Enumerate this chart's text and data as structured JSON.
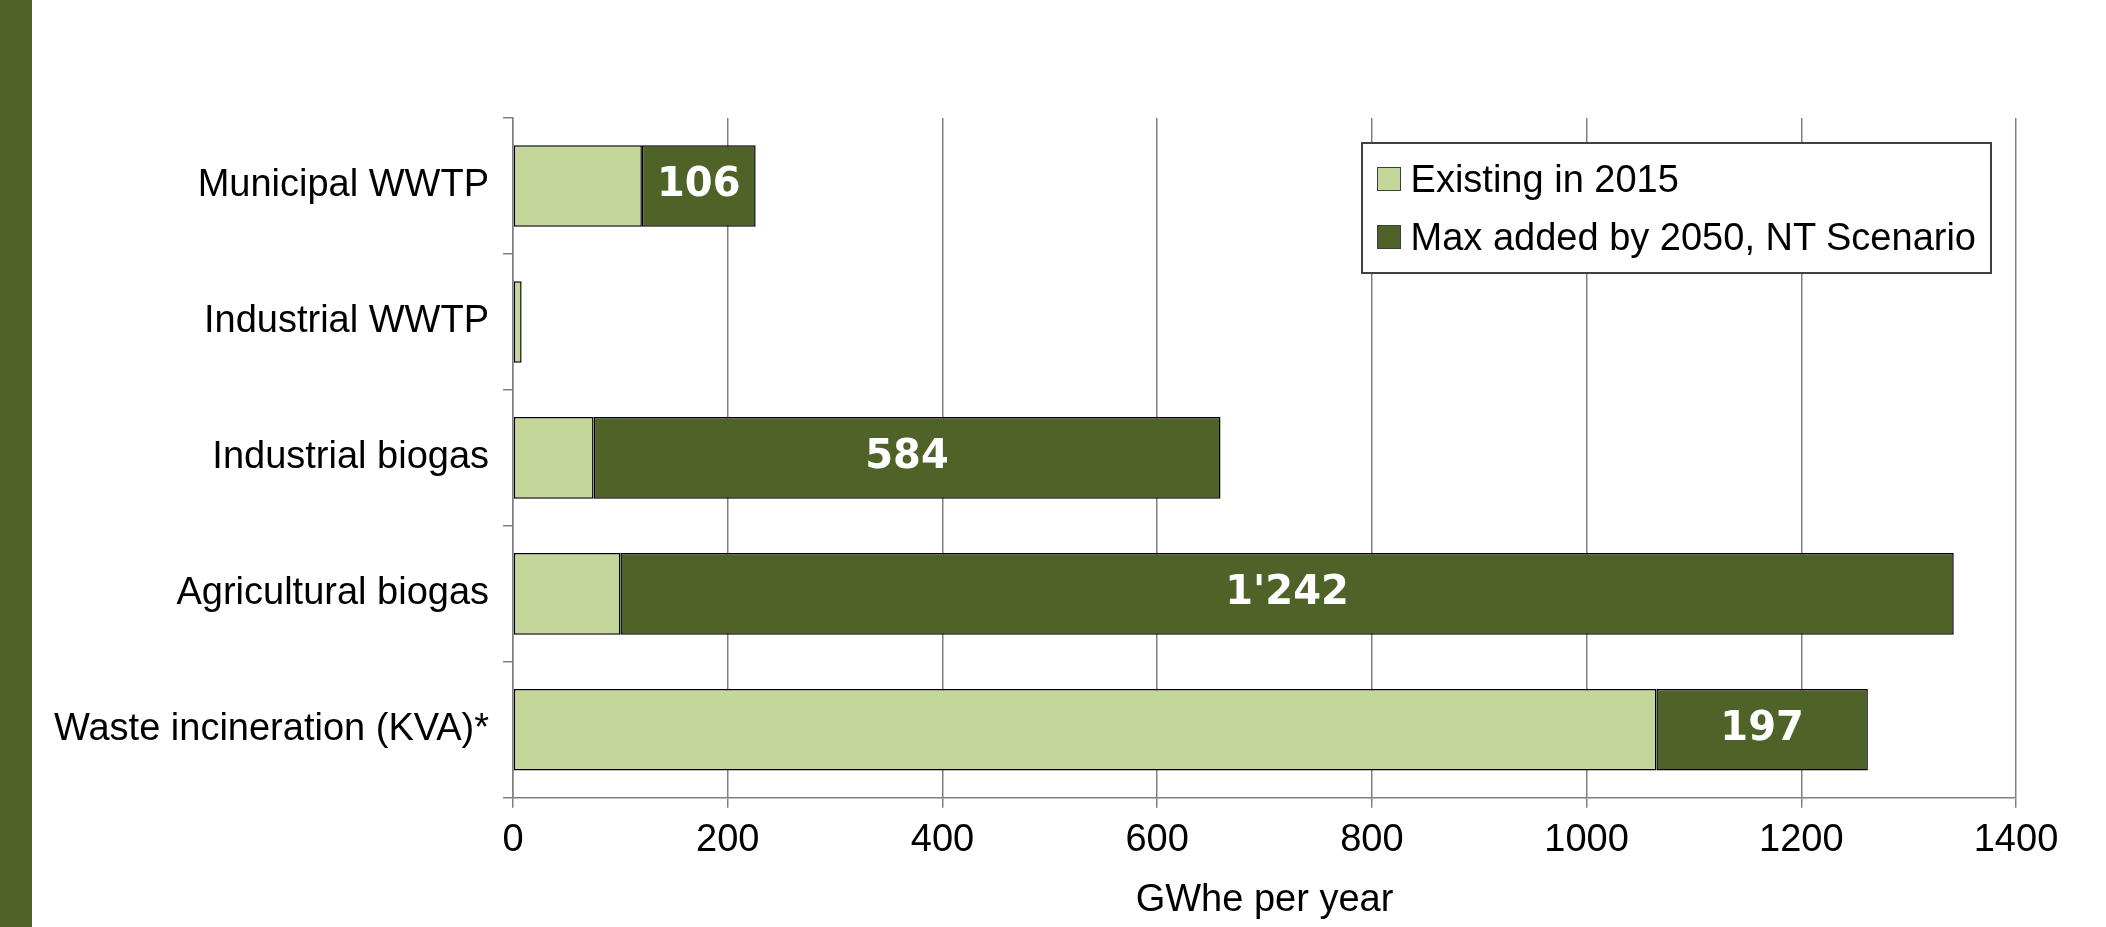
{
  "chart_data": {
    "type": "bar",
    "orientation": "horizontal",
    "stacked": true,
    "xlabel": "GWhe per year",
    "categories": [
      "Municipal WWTP",
      "Industrial WWTP",
      "Industrial biogas",
      "Agricultural biogas",
      "Waste incineration (KVA)*"
    ],
    "series": [
      {
        "name": "Existing in 2015",
        "color": "#c4d79b",
        "values": [
          120,
          8,
          75,
          100,
          1065
        ]
      },
      {
        "name": "Max added by 2050, NT Scenario",
        "color": "#4f6228",
        "values": [
          106,
          null,
          584,
          1242,
          197
        ],
        "value_labels": [
          "106",
          null,
          "584",
          "1'242",
          "197"
        ]
      }
    ],
    "xlim": [
      0,
      1400
    ],
    "xticks": [
      0,
      200,
      400,
      600,
      800,
      1000,
      1200,
      1400
    ],
    "grid": "x",
    "legend": "top right"
  }
}
